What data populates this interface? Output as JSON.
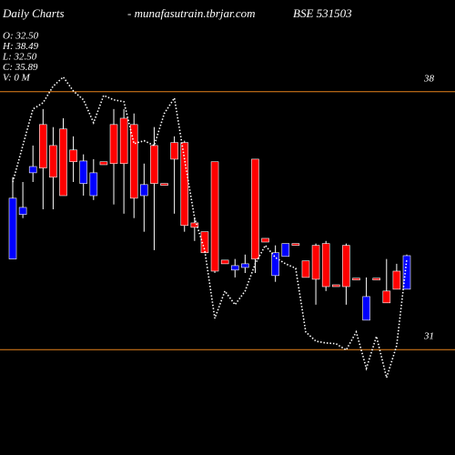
{
  "chart_data": {
    "type": "candlestick",
    "title": "Daily Charts",
    "subtitle": "- munafasutrain.tbrjar.com",
    "symbol": "BSE 531503",
    "info": [
      "O: 32.50",
      "H: 38.49",
      "L: 32.50",
      "C: 35.89",
      "V: 0  M"
    ],
    "up_color": "#0000ff",
    "down_color": "#ff0000",
    "wick_color": "#ffffff",
    "ylim": [
      28.14,
      40.49
    ],
    "hlines": [
      38,
      31
    ],
    "hline_color": "#e8841c",
    "open": [
      33.46,
      34.67,
      35.8,
      37.11,
      36.54,
      36.99,
      36.42,
      35.51,
      35.18,
      36.1,
      37.11,
      37.28,
      37.11,
      35.18,
      36.54,
      35.51,
      36.62,
      36.62,
      34.44,
      34.2,
      36.1,
      33.43,
      33.16,
      33.23,
      36.17,
      34.02,
      33.01,
      33.53,
      33.88,
      33.41,
      33.83,
      33.88,
      32.76,
      33.83,
      32.94,
      31.8,
      32.94,
      32.59,
      33.13,
      32.64
    ],
    "high": [
      35.68,
      35.55,
      36.54,
      37.53,
      37.04,
      37.28,
      36.79,
      36.3,
      36.17,
      36.1,
      37.53,
      37.53,
      37.41,
      36.05,
      37.04,
      35.51,
      36.79,
      36.67,
      34.57,
      34.2,
      36.1,
      33.43,
      33.46,
      33.58,
      36.17,
      34.02,
      33.83,
      33.88,
      33.88,
      33.41,
      33.88,
      33.95,
      32.76,
      33.88,
      32.94,
      32.96,
      32.94,
      33.46,
      33.33,
      33.58
    ],
    "low": [
      33.46,
      34.57,
      35.55,
      34.81,
      34.81,
      35.18,
      35.55,
      35.18,
      35.06,
      36.02,
      34.94,
      34.69,
      34.57,
      34.2,
      33.7,
      35.46,
      34.69,
      34.2,
      33.95,
      33.63,
      33.08,
      33.33,
      32.96,
      33.08,
      33.08,
      33.92,
      32.84,
      33.53,
      33.83,
      32.96,
      32.22,
      32.59,
      32.71,
      32.22,
      32.89,
      31.8,
      32.89,
      32.27,
      32.64,
      32.64
    ],
    "close": [
      35.11,
      34.86,
      35.97,
      35.93,
      35.68,
      35.18,
      36.1,
      36.12,
      35.8,
      36.02,
      36.05,
      36.05,
      35.11,
      35.48,
      35.51,
      35.46,
      36.17,
      34.37,
      34.32,
      33.63,
      33.13,
      33.33,
      33.28,
      33.33,
      33.46,
      33.92,
      33.63,
      33.88,
      33.83,
      32.96,
      32.91,
      32.71,
      32.71,
      32.71,
      32.89,
      32.44,
      32.89,
      32.27,
      32.64,
      33.55
    ],
    "line": {
      "color": "#ffffff",
      "style": "dotted",
      "values": [
        35.55,
        36.54,
        37.53,
        37.7,
        38.15,
        38.4,
        38.02,
        37.78,
        37.16,
        37.9,
        37.78,
        37.73,
        36.59,
        36.67,
        36.54,
        37.41,
        37.83,
        36.17,
        34.57,
        33.7,
        31.85,
        32.59,
        32.22,
        32.59,
        33.33,
        33.83,
        33.5,
        33.33,
        33.21,
        31.48,
        31.23,
        31.18,
        31.16,
        30.99,
        31.48,
        30.49,
        31.36,
        30.24,
        31.11,
        33.46
      ]
    }
  }
}
